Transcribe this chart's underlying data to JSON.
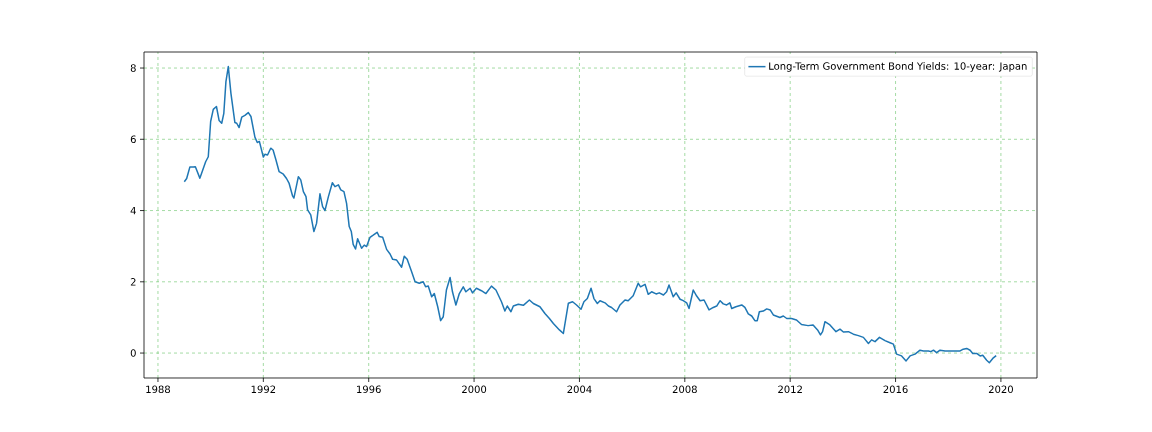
{
  "chart_data": {
    "type": "line",
    "x": [
      1989.0,
      1989.09,
      1989.21,
      1989.34,
      1989.42,
      1989.59,
      1989.7,
      1989.81,
      1989.91,
      1990.0,
      1990.1,
      1990.22,
      1990.32,
      1990.42,
      1990.5,
      1990.58,
      1990.67,
      1990.77,
      1990.92,
      1990.99,
      1991.08,
      1991.18,
      1991.3,
      1991.43,
      1991.53,
      1991.68,
      1991.77,
      1991.85,
      1992.0,
      1992.06,
      1992.16,
      1992.28,
      1992.37,
      1992.48,
      1992.6,
      1992.76,
      1992.88,
      1992.98,
      1993.11,
      1993.16,
      1993.33,
      1993.42,
      1993.52,
      1993.62,
      1993.68,
      1993.8,
      1993.92,
      1994.02,
      1994.15,
      1994.25,
      1994.34,
      1994.47,
      1994.62,
      1994.72,
      1994.85,
      1994.94,
      1995.06,
      1995.16,
      1995.26,
      1995.34,
      1995.41,
      1995.5,
      1995.58,
      1995.73,
      1995.83,
      1995.92,
      1996.05,
      1996.17,
      1996.32,
      1996.4,
      1996.53,
      1996.68,
      1996.81,
      1996.91,
      1997.06,
      1997.25,
      1997.35,
      1997.46,
      1997.63,
      1997.76,
      1997.92,
      1998.07,
      1998.16,
      1998.26,
      1998.39,
      1998.49,
      1998.62,
      1998.73,
      1998.83,
      1998.95,
      1999.09,
      1999.18,
      1999.31,
      1999.44,
      1999.59,
      1999.69,
      1999.85,
      1999.94,
      2000.09,
      2000.28,
      2000.45,
      2000.66,
      2000.83,
      2001.04,
      2001.17,
      2001.26,
      2001.4,
      2001.49,
      2001.68,
      2001.87,
      2002.1,
      2002.25,
      2002.5,
      2002.69,
      2002.86,
      2003.01,
      2003.24,
      2003.39,
      2003.58,
      2003.74,
      2003.89,
      2004.06,
      2004.17,
      2004.3,
      2004.44,
      2004.55,
      2004.68,
      2004.78,
      2004.97,
      2005.1,
      2005.22,
      2005.41,
      2005.54,
      2005.73,
      2005.85,
      2006.04,
      2006.23,
      2006.32,
      2006.49,
      2006.61,
      2006.74,
      2006.91,
      2007.03,
      2007.19,
      2007.31,
      2007.4,
      2007.56,
      2007.67,
      2007.82,
      2007.94,
      2008.07,
      2008.16,
      2008.32,
      2008.45,
      2008.58,
      2008.73,
      2008.92,
      2009.08,
      2009.21,
      2009.34,
      2009.46,
      2009.59,
      2009.71,
      2009.78,
      2009.94,
      2010.16,
      2010.28,
      2010.41,
      2010.54,
      2010.66,
      2010.75,
      2010.83,
      2010.98,
      2011.11,
      2011.24,
      2011.36,
      2011.61,
      2011.74,
      2011.87,
      2012.05,
      2012.24,
      2012.43,
      2012.68,
      2012.87,
      2013.04,
      2013.15,
      2013.23,
      2013.32,
      2013.51,
      2013.74,
      2013.89,
      2014.02,
      2014.21,
      2014.4,
      2014.59,
      2014.78,
      2014.97,
      2015.09,
      2015.22,
      2015.39,
      2015.6,
      2015.79,
      2015.92,
      2016.04,
      2016.23,
      2016.4,
      2016.55,
      2016.74,
      2016.93,
      2017.06,
      2017.25,
      2017.34,
      2017.44,
      2017.56,
      2017.69,
      2017.88,
      2018.07,
      2018.26,
      2018.45,
      2018.57,
      2018.7,
      2018.83,
      2018.93,
      2019.08,
      2019.21,
      2019.31,
      2019.46,
      2019.56,
      2019.69,
      2019.82
    ],
    "series": [
      {
        "name": "Long-Term Government Bond Yields: 10-year: Japan",
        "color": "#1f77b4",
        "values": [
          4.81,
          4.9,
          5.22,
          5.22,
          5.23,
          4.91,
          5.14,
          5.37,
          5.51,
          6.5,
          6.84,
          6.92,
          6.53,
          6.45,
          6.73,
          7.62,
          8.04,
          7.29,
          6.47,
          6.45,
          6.33,
          6.62,
          6.67,
          6.75,
          6.64,
          6.06,
          5.91,
          5.94,
          5.5,
          5.58,
          5.56,
          5.75,
          5.7,
          5.42,
          5.09,
          5.02,
          4.9,
          4.76,
          4.41,
          4.35,
          4.95,
          4.86,
          4.53,
          4.39,
          4.02,
          3.88,
          3.41,
          3.64,
          4.47,
          4.11,
          4.0,
          4.39,
          4.78,
          4.67,
          4.72,
          4.58,
          4.53,
          4.2,
          3.55,
          3.41,
          3.05,
          2.92,
          3.21,
          2.94,
          3.03,
          2.99,
          3.25,
          3.31,
          3.39,
          3.27,
          3.25,
          2.91,
          2.78,
          2.63,
          2.61,
          2.41,
          2.72,
          2.63,
          2.28,
          2.0,
          1.96,
          2.0,
          1.86,
          1.88,
          1.58,
          1.67,
          1.3,
          0.91,
          1.02,
          1.77,
          2.12,
          1.72,
          1.35,
          1.67,
          1.86,
          1.72,
          1.82,
          1.69,
          1.82,
          1.75,
          1.67,
          1.88,
          1.77,
          1.44,
          1.18,
          1.32,
          1.16,
          1.32,
          1.37,
          1.34,
          1.49,
          1.39,
          1.3,
          1.11,
          0.97,
          0.83,
          0.65,
          0.55,
          1.4,
          1.44,
          1.35,
          1.23,
          1.44,
          1.53,
          1.82,
          1.53,
          1.39,
          1.47,
          1.41,
          1.32,
          1.28,
          1.16,
          1.35,
          1.49,
          1.47,
          1.61,
          1.96,
          1.86,
          1.93,
          1.65,
          1.72,
          1.66,
          1.69,
          1.63,
          1.72,
          1.91,
          1.58,
          1.69,
          1.51,
          1.47,
          1.41,
          1.25,
          1.77,
          1.6,
          1.47,
          1.49,
          1.21,
          1.28,
          1.32,
          1.47,
          1.38,
          1.35,
          1.41,
          1.25,
          1.3,
          1.35,
          1.28,
          1.1,
          1.04,
          0.91,
          0.91,
          1.16,
          1.18,
          1.24,
          1.21,
          1.07,
          1.0,
          1.04,
          0.97,
          0.97,
          0.93,
          0.8,
          0.77,
          0.79,
          0.65,
          0.51,
          0.6,
          0.88,
          0.79,
          0.6,
          0.67,
          0.59,
          0.6,
          0.53,
          0.49,
          0.44,
          0.27,
          0.37,
          0.32,
          0.44,
          0.35,
          0.29,
          0.25,
          -0.03,
          -0.08,
          -0.22,
          -0.08,
          -0.03,
          0.08,
          0.06,
          0.06,
          0.04,
          0.08,
          0.01,
          0.08,
          0.06,
          0.06,
          0.06,
          0.06,
          0.11,
          0.13,
          0.08,
          -0.01,
          -0.01,
          -0.08,
          -0.06,
          -0.2,
          -0.27,
          -0.15,
          -0.07
        ]
      }
    ],
    "xlim": [
      1987.47,
      2021.37
    ],
    "ylim": [
      -0.7,
      8.45
    ],
    "xticks": [
      1988,
      1992,
      1996,
      2000,
      2004,
      2008,
      2012,
      2016,
      2020
    ],
    "yticks": [
      0,
      2,
      4,
      6,
      8
    ],
    "grid": true,
    "legend": "top right",
    "line_style": "solid",
    "marker": "none"
  }
}
